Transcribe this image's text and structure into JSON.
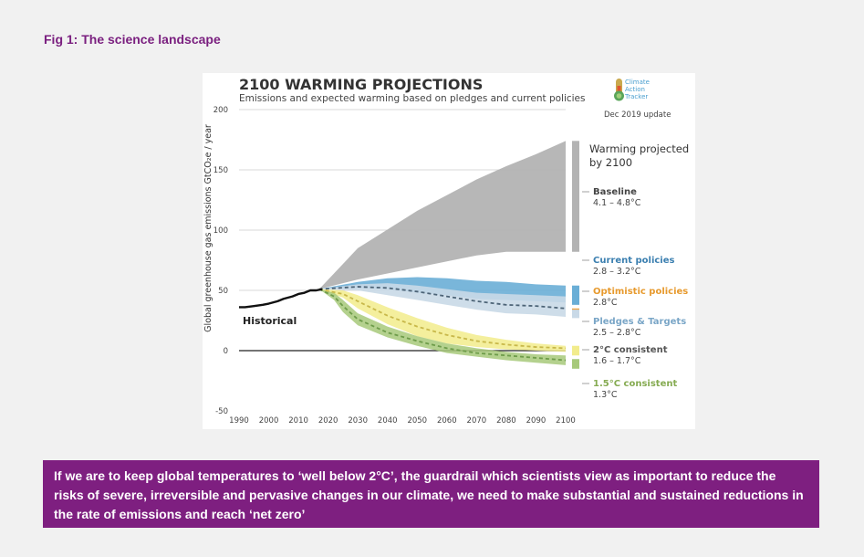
{
  "figure_label": "Fig 1: The science landscape",
  "banner_text": "If we are to keep global temperatures to ‘well below 2°C’, the guardrail which scientists view as important to reduce the risks of severe, irreversible and pervasive changes in our climate, we need to make substantial and sustained reductions in the rate of emissions and reach ‘net zero’",
  "logo": {
    "lines": [
      "Climate",
      "Action",
      "Tracker"
    ],
    "icon": "thermometer-logo-icon"
  },
  "update_note": "Dec 2019 update",
  "colors": {
    "accent": "#7e1f80",
    "baseline": "#b3b3b3",
    "current": "#6aaed6",
    "optimistic": "#f0a340",
    "pledges": "#c9d9e7",
    "two_deg": "#f2ec8c",
    "one_five": "#a7c97a",
    "historical": "#111111"
  },
  "chart_data": {
    "type": "area",
    "title": "2100 WARMING PROJECTIONS",
    "subtitle": "Emissions and expected warming based on pledges and current policies",
    "ylabel": "Global greenhouse gas emissions GtCO₂e / year",
    "xlabel": "",
    "x_ticks": [
      1990,
      2000,
      2010,
      2020,
      2030,
      2040,
      2050,
      2060,
      2070,
      2080,
      2090,
      2100
    ],
    "y_ticks": [
      -50,
      0,
      50,
      100,
      150,
      200
    ],
    "xlim": [
      1990,
      2100
    ],
    "ylim": [
      -50,
      200
    ],
    "grid": true,
    "historical": {
      "name": "Historical",
      "x": [
        1990,
        1992,
        1995,
        1998,
        2000,
        2003,
        2005,
        2008,
        2010,
        2012,
        2014,
        2016,
        2018
      ],
      "y": [
        36,
        36,
        37,
        38,
        39,
        41,
        43,
        45,
        47,
        48,
        50,
        50,
        51
      ]
    },
    "ranges": [
      {
        "key": "baseline",
        "x": [
          2017,
          2030,
          2050,
          2070,
          2080,
          2090,
          2100
        ],
        "low": [
          51,
          59,
          69,
          79,
          82,
          82,
          82
        ],
        "high": [
          51,
          85,
          116,
          142,
          153,
          163,
          174
        ]
      },
      {
        "key": "current",
        "x": [
          2017,
          2030,
          2040,
          2050,
          2060,
          2070,
          2080,
          2090,
          2100
        ],
        "low": [
          51,
          52,
          51,
          48,
          46,
          43,
          42,
          41,
          40
        ],
        "high": [
          51,
          57,
          60,
          61,
          60,
          58,
          57,
          55,
          54
        ]
      },
      {
        "key": "pledges",
        "x": [
          2017,
          2030,
          2040,
          2050,
          2060,
          2070,
          2080,
          2090,
          2100
        ],
        "low": [
          51,
          50,
          46,
          42,
          38,
          34,
          31,
          30,
          28
        ],
        "high": [
          51,
          55,
          56,
          54,
          51,
          48,
          47,
          46,
          45
        ]
      },
      {
        "key": "two_deg",
        "x": [
          2017,
          2025,
          2030,
          2040,
          2050,
          2060,
          2070,
          2080,
          2090,
          2100
        ],
        "low": [
          51,
          44,
          35,
          22,
          12,
          6,
          3,
          1,
          0,
          -1
        ],
        "high": [
          51,
          50,
          46,
          36,
          27,
          19,
          13,
          9,
          6,
          4
        ]
      },
      {
        "key": "one_five",
        "x": [
          2017,
          2022,
          2025,
          2030,
          2040,
          2050,
          2060,
          2070,
          2080,
          2090,
          2100
        ],
        "low": [
          51,
          42,
          32,
          21,
          11,
          4,
          -2,
          -5,
          -8,
          -10,
          -12
        ],
        "high": [
          51,
          48,
          42,
          31,
          20,
          12,
          6,
          2,
          -1,
          -3,
          -4
        ]
      }
    ],
    "dashed_medians": [
      {
        "key": "pledges",
        "x": [
          2017,
          2030,
          2040,
          2050,
          2060,
          2070,
          2080,
          2090,
          2100
        ],
        "y": [
          51,
          53,
          52,
          49,
          45,
          41,
          38,
          37,
          35
        ]
      },
      {
        "key": "two_deg",
        "x": [
          2017,
          2025,
          2030,
          2040,
          2050,
          2060,
          2070,
          2080,
          2090,
          2100
        ],
        "y": [
          51,
          47,
          41,
          29,
          20,
          13,
          8,
          5,
          3,
          2
        ]
      },
      {
        "key": "one_five",
        "x": [
          2017,
          2022,
          2025,
          2030,
          2040,
          2050,
          2060,
          2070,
          2080,
          2090,
          2100
        ],
        "y": [
          51,
          45,
          37,
          26,
          15,
          8,
          2,
          -2,
          -4,
          -6,
          -8
        ]
      }
    ],
    "warming_bars": [
      {
        "key": "baseline",
        "low": 82,
        "high": 174
      },
      {
        "key": "current",
        "low": 38,
        "high": 54
      },
      {
        "key": "optimistic",
        "low": 32,
        "high": 35
      },
      {
        "key": "pledges",
        "low": 27,
        "high": 34
      },
      {
        "key": "two_deg",
        "low": -4,
        "high": 4
      },
      {
        "key": "one_five",
        "low": -15,
        "high": -7
      }
    ],
    "scenarios_header": "Warming projected by 2100",
    "scenarios": [
      {
        "key": "baseline",
        "name": "Baseline",
        "range": "4.1 – 4.8°C"
      },
      {
        "key": "current",
        "name": "Current policies",
        "range": "2.8 – 3.2°C"
      },
      {
        "key": "optimistic",
        "name": "Optimistic policies",
        "range": "2.8°C"
      },
      {
        "key": "pledges",
        "name": "Pledges & Targets",
        "range": "2.5 – 2.8°C"
      },
      {
        "key": "two_deg",
        "name": "2°C consistent",
        "range": "1.6 – 1.7°C"
      },
      {
        "key": "one_five",
        "name": "1.5°C consistent",
        "range": "1.3°C"
      }
    ]
  }
}
